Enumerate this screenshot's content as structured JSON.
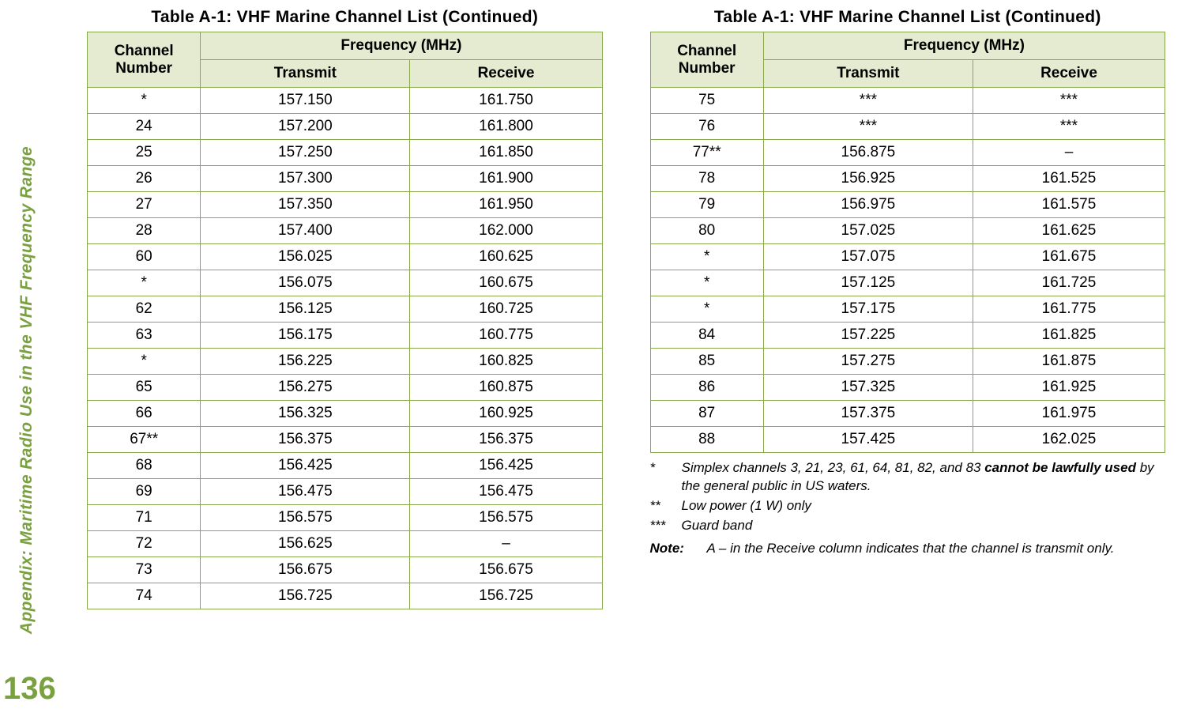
{
  "page_number": "136",
  "side_label": "Appendix: Maritime Radio Use in the VHF Frequency Range",
  "colors": {
    "accent_green": "#7aa13f",
    "header_bg": "#e4ebd1",
    "border": "#88a84e"
  },
  "table_title": "Table A-1: VHF Marine Channel List (Continued)",
  "headers": {
    "channel": "Channel Number",
    "freq": "Frequency (MHz)",
    "transmit": "Transmit",
    "receive": "Receive"
  },
  "left_rows": [
    {
      "ch": "*",
      "tx": "157.150",
      "rx": "161.750"
    },
    {
      "ch": "24",
      "tx": "157.200",
      "rx": "161.800"
    },
    {
      "ch": "25",
      "tx": "157.250",
      "rx": "161.850"
    },
    {
      "ch": "26",
      "tx": "157.300",
      "rx": "161.900"
    },
    {
      "ch": "27",
      "tx": "157.350",
      "rx": "161.950"
    },
    {
      "ch": "28",
      "tx": "157.400",
      "rx": "162.000"
    },
    {
      "ch": "60",
      "tx": "156.025",
      "rx": "160.625"
    },
    {
      "ch": "*",
      "tx": "156.075",
      "rx": "160.675"
    },
    {
      "ch": "62",
      "tx": "156.125",
      "rx": "160.725"
    },
    {
      "ch": "63",
      "tx": "156.175",
      "rx": "160.775"
    },
    {
      "ch": "*",
      "tx": "156.225",
      "rx": "160.825"
    },
    {
      "ch": "65",
      "tx": "156.275",
      "rx": "160.875"
    },
    {
      "ch": "66",
      "tx": "156.325",
      "rx": "160.925"
    },
    {
      "ch": "67**",
      "tx": "156.375",
      "rx": "156.375"
    },
    {
      "ch": "68",
      "tx": "156.425",
      "rx": "156.425"
    },
    {
      "ch": "69",
      "tx": "156.475",
      "rx": "156.475"
    },
    {
      "ch": "71",
      "tx": "156.575",
      "rx": "156.575"
    },
    {
      "ch": "72",
      "tx": "156.625",
      "rx": "–"
    },
    {
      "ch": "73",
      "tx": "156.675",
      "rx": "156.675"
    },
    {
      "ch": "74",
      "tx": "156.725",
      "rx": "156.725"
    }
  ],
  "right_rows": [
    {
      "ch": "75",
      "tx": "***",
      "rx": "***"
    },
    {
      "ch": "76",
      "tx": "***",
      "rx": "***"
    },
    {
      "ch": "77**",
      "tx": "156.875",
      "rx": "–"
    },
    {
      "ch": "78",
      "tx": "156.925",
      "rx": "161.525"
    },
    {
      "ch": "79",
      "tx": "156.975",
      "rx": "161.575"
    },
    {
      "ch": "80",
      "tx": "157.025",
      "rx": "161.625"
    },
    {
      "ch": "*",
      "tx": "157.075",
      "rx": "161.675"
    },
    {
      "ch": "*",
      "tx": "157.125",
      "rx": "161.725"
    },
    {
      "ch": "*",
      "tx": "157.175",
      "rx": "161.775"
    },
    {
      "ch": "84",
      "tx": "157.225",
      "rx": "161.825"
    },
    {
      "ch": "85",
      "tx": "157.275",
      "rx": "161.875"
    },
    {
      "ch": "86",
      "tx": "157.325",
      "rx": "161.925"
    },
    {
      "ch": "87",
      "tx": "157.375",
      "rx": "161.975"
    },
    {
      "ch": "88",
      "tx": "157.425",
      "rx": "162.025"
    }
  ],
  "footnotes": {
    "star_mark": "*",
    "star_pre": "Simplex channels 3, 21, 23, 61, 64, 81, 82, and 83 ",
    "star_bold": "cannot be lawfully used",
    "star_post": " by the general public in US waters.",
    "dstar_mark": "**",
    "dstar_text": "Low power (1 W) only",
    "tstar_mark": "***",
    "tstar_text": "Guard band",
    "note_label": "Note:",
    "note_text": "A – in the Receive column indicates that the channel is transmit only."
  }
}
